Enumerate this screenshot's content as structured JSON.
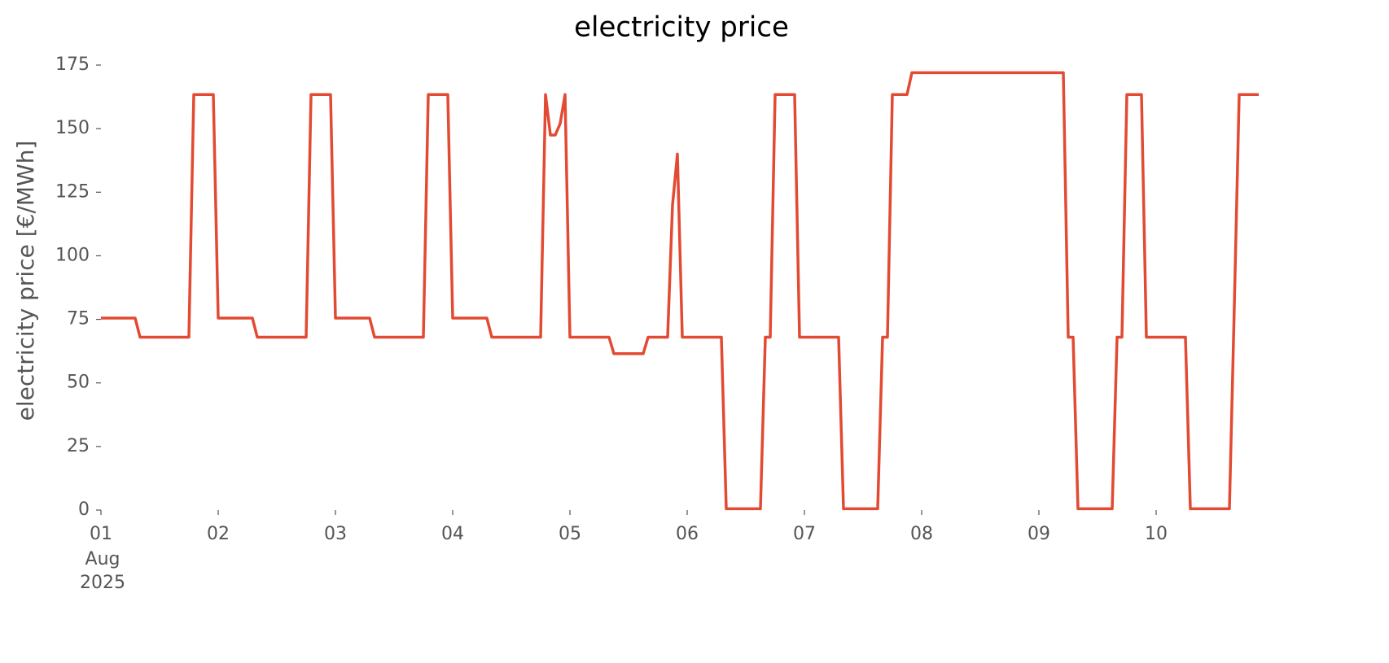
{
  "chart_data": {
    "type": "line",
    "title": "electricity price",
    "ylabel": "electricity price [€/MWh]",
    "x": [
      0,
      1,
      2,
      3,
      4,
      5,
      6,
      7,
      8,
      9,
      10,
      11,
      12,
      13,
      14,
      15,
      16,
      17,
      18,
      19,
      20,
      21,
      22,
      23,
      24,
      25,
      26,
      27,
      28,
      29,
      30,
      31,
      32,
      33,
      34,
      35,
      36,
      37,
      38,
      39,
      40,
      41,
      42,
      43,
      44,
      45,
      46,
      47,
      48,
      49,
      50,
      51,
      52,
      53,
      54,
      55,
      56,
      57,
      58,
      59,
      60,
      61,
      62,
      63,
      64,
      65,
      66,
      67,
      68,
      69,
      70,
      71,
      72,
      73,
      74,
      75,
      76,
      77,
      78,
      79,
      80,
      81,
      82,
      83,
      84,
      85,
      86,
      87,
      88,
      89,
      90,
      91,
      92,
      93,
      94,
      95,
      96,
      97,
      98,
      99,
      100,
      101,
      102,
      103,
      104,
      105,
      106,
      107,
      108,
      109,
      110,
      111,
      112,
      113,
      114,
      115,
      116,
      117,
      118,
      119,
      120,
      121,
      122,
      123,
      124,
      125,
      126,
      127,
      128,
      129,
      130,
      131,
      132,
      133,
      134,
      135,
      136,
      137,
      138,
      139,
      140,
      141,
      142,
      143,
      144,
      145,
      146,
      147,
      148,
      149,
      150,
      151,
      152,
      153,
      154,
      155,
      156,
      157,
      158,
      159,
      160,
      161,
      162,
      163,
      164,
      165,
      166,
      167,
      168,
      169,
      170,
      171,
      172,
      173,
      174,
      175,
      176,
      177,
      178,
      179,
      180,
      181,
      182,
      183,
      184,
      185,
      186,
      187,
      188,
      189,
      190,
      191,
      192,
      193,
      194,
      195,
      196,
      197,
      198,
      199,
      200,
      201,
      202,
      203,
      204,
      205,
      206,
      207,
      208,
      209,
      210,
      211,
      212,
      213,
      214,
      215,
      216,
      217,
      218,
      219,
      220,
      221,
      222,
      223,
      224,
      225,
      226,
      227,
      228,
      229,
      230,
      231,
      232,
      233,
      234,
      235,
      236,
      237
    ],
    "series": [
      {
        "name": "electricity price",
        "color": "#e24a33",
        "values": [
          75.5,
          75.5,
          75.5,
          75.5,
          75.5,
          75.5,
          75.5,
          75.5,
          68,
          68,
          68,
          68,
          68,
          68,
          68,
          68,
          68,
          68,
          68,
          163.4,
          163.4,
          163.4,
          163.4,
          163.4,
          75.5,
          75.5,
          75.5,
          75.5,
          75.5,
          75.5,
          75.5,
          75.5,
          68,
          68,
          68,
          68,
          68,
          68,
          68,
          68,
          68,
          68,
          68,
          163.4,
          163.4,
          163.4,
          163.4,
          163.4,
          75.5,
          75.5,
          75.5,
          75.5,
          75.5,
          75.5,
          75.5,
          75.5,
          68,
          68,
          68,
          68,
          68,
          68,
          68,
          68,
          68,
          68,
          68,
          163.4,
          163.4,
          163.4,
          163.4,
          163.4,
          75.5,
          75.5,
          75.5,
          75.5,
          75.5,
          75.5,
          75.5,
          75.5,
          68,
          68,
          68,
          68,
          68,
          68,
          68,
          68,
          68,
          68,
          68,
          163.4,
          147.5,
          147.5,
          152,
          163.4,
          68,
          68,
          68,
          68,
          68,
          68,
          68,
          68,
          68,
          61.5,
          61.5,
          61.5,
          61.5,
          61.5,
          61.5,
          61.5,
          68,
          68,
          68,
          68,
          68,
          120,
          140,
          68,
          68,
          68,
          68,
          68,
          68,
          68,
          68,
          68,
          0.5,
          0.5,
          0.5,
          0.5,
          0.5,
          0.5,
          0.5,
          0.5,
          68,
          68,
          163.4,
          163.4,
          163.4,
          163.4,
          163.4,
          68,
          68,
          68,
          68,
          68,
          68,
          68,
          68,
          68,
          0.5,
          0.5,
          0.5,
          0.5,
          0.5,
          0.5,
          0.5,
          0.5,
          68,
          68,
          163.4,
          163.4,
          163.4,
          163.4,
          172,
          172,
          172,
          172,
          172,
          172,
          172,
          172,
          172,
          172,
          172,
          172,
          172,
          172,
          172,
          172,
          172,
          172,
          172,
          172,
          172,
          172,
          172,
          172,
          172,
          172,
          172,
          172,
          172,
          172,
          172,
          172,
          68,
          68,
          0.5,
          0.5,
          0.5,
          0.5,
          0.5,
          0.5,
          0.5,
          0.5,
          68,
          68,
          163.4,
          163.4,
          163.4,
          163.4,
          68,
          68,
          68,
          68,
          68,
          68,
          68,
          68,
          68,
          0.5,
          0.5,
          0.5,
          0.5,
          0.5,
          0.5,
          0.5,
          0.5,
          0.5,
          80,
          163.4,
          163.4,
          163.4,
          163.4,
          163.4
        ]
      }
    ],
    "xlim": [
      0,
      237.5
    ],
    "xticks": [
      {
        "value": 0,
        "label": "01"
      },
      {
        "value": 24,
        "label": "02"
      },
      {
        "value": 48,
        "label": "03"
      },
      {
        "value": 72,
        "label": "04"
      },
      {
        "value": 96,
        "label": "05"
      },
      {
        "value": 120,
        "label": "06"
      },
      {
        "value": 144,
        "label": "07"
      },
      {
        "value": 168,
        "label": "08"
      },
      {
        "value": 192,
        "label": "09"
      },
      {
        "value": 216,
        "label": "10"
      }
    ],
    "x_tick_sublabels": [
      "Aug",
      "2025"
    ],
    "ylim": [
      0,
      175
    ],
    "yticks": [
      0,
      25,
      50,
      75,
      100,
      125,
      150,
      175
    ],
    "grid": false
  }
}
